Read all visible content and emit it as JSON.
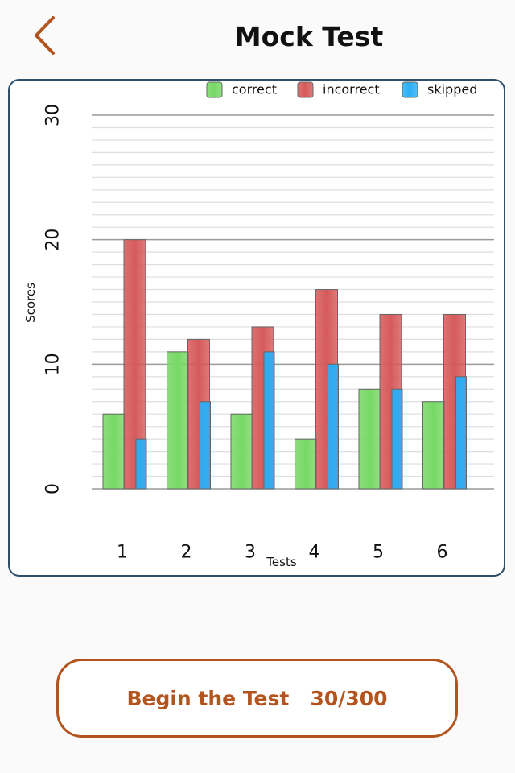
{
  "header": {
    "title": "Mock Test",
    "back_icon": "chevron-left-icon",
    "accent_color": "#b3541e"
  },
  "chart_data": {
    "type": "bar",
    "categories": [
      "1",
      "2",
      "3",
      "4",
      "5",
      "6"
    ],
    "series": [
      {
        "name": "correct",
        "values": [
          6,
          11,
          6,
          4,
          8,
          7
        ],
        "color": "#77d866"
      },
      {
        "name": "incorrect",
        "values": [
          20,
          12,
          13,
          16,
          14,
          14
        ],
        "color": "#d65a5a"
      },
      {
        "name": "skipped",
        "values": [
          4,
          7,
          11,
          10,
          8,
          9
        ],
        "color": "#2aaef5"
      }
    ],
    "xlabel": "Tests",
    "ylabel": "Scores",
    "ylim": [
      0,
      30
    ],
    "yticks": [
      "0",
      "10",
      "20",
      "30"
    ],
    "grid": true,
    "legend_position": "top-right"
  },
  "footer": {
    "begin_label": "Begin the Test   30/300"
  }
}
